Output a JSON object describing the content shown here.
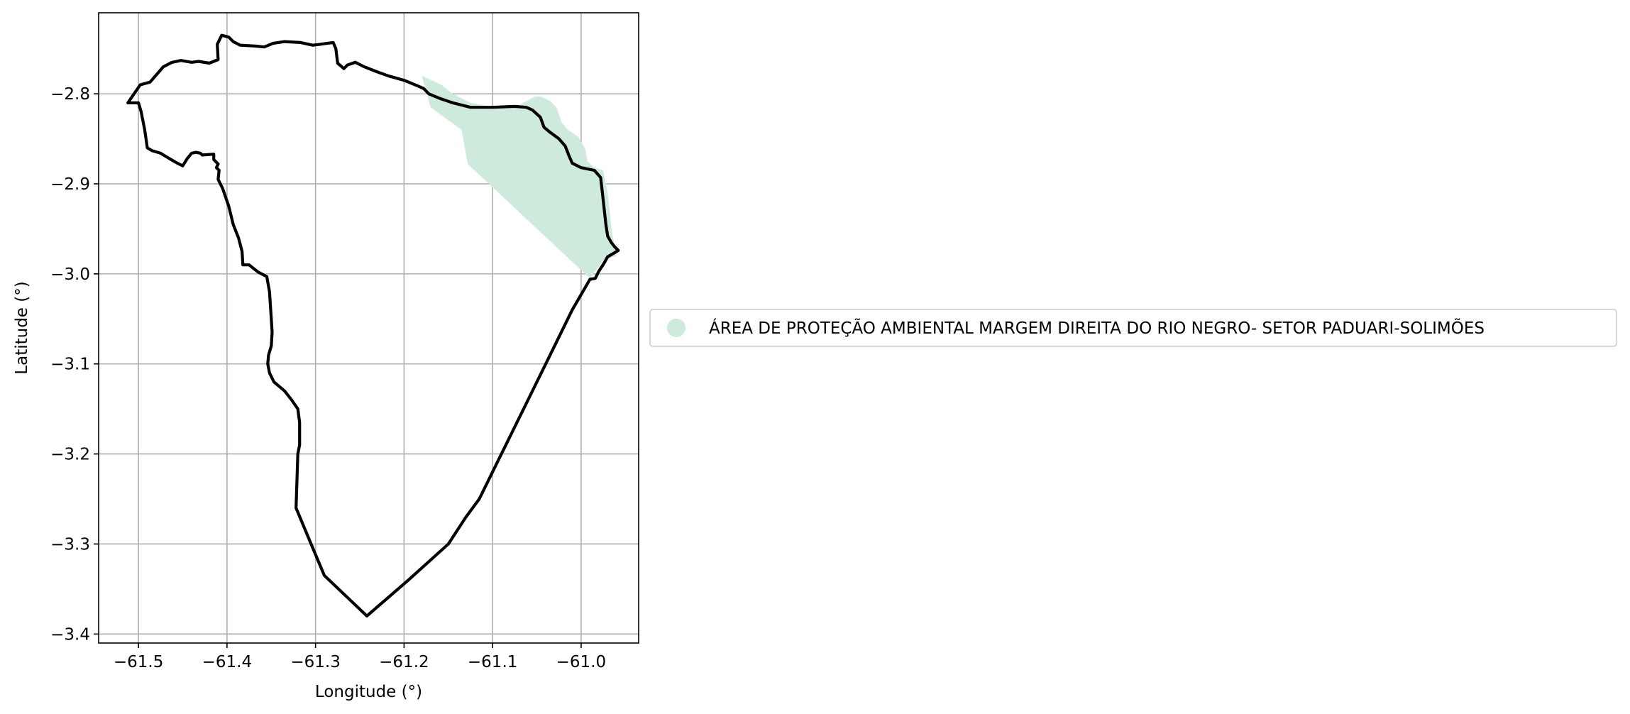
{
  "chart_data": {
    "type": "map",
    "xlabel": "Longitude (°)",
    "ylabel": "Latitude (°)",
    "xlim": [
      -61.545,
      -60.935
    ],
    "ylim": [
      -3.41,
      -2.71
    ],
    "x_ticks": [
      -61.5,
      -61.4,
      -61.3,
      -61.2,
      -61.1,
      -61.0
    ],
    "y_ticks": [
      -2.8,
      -2.9,
      -3.0,
      -3.1,
      -3.2,
      -3.3,
      -3.4
    ],
    "x_tick_labels": [
      "−61.5",
      "−61.4",
      "−61.3",
      "−61.2",
      "−61.1",
      "−61.0"
    ],
    "y_tick_labels": [
      "−2.8",
      "−2.9",
      "−3.0",
      "−3.1",
      "−3.2",
      "−3.3",
      "−3.4"
    ],
    "grid": true,
    "legend": {
      "placement": "right",
      "entries": [
        {
          "label": "ÁREA DE PROTEÇÃO AMBIENTAL MARGEM DIREITA DO RIO NEGRO- SETOR PADUARI-SOLIMÕES",
          "color": "#cdeadc",
          "marker": "circle"
        }
      ]
    },
    "protected_area": {
      "fill_color": "#cdeadc",
      "polygon": [
        [
          -61.18,
          -2.78
        ],
        [
          -61.17,
          -2.815
        ],
        [
          -61.135,
          -2.84
        ],
        [
          -61.128,
          -2.878
        ],
        [
          -60.99,
          -3.005
        ],
        [
          -60.975,
          -2.985
        ],
        [
          -60.96,
          -2.98
        ],
        [
          -60.965,
          -2.955
        ],
        [
          -60.97,
          -2.91
        ],
        [
          -60.975,
          -2.885
        ],
        [
          -60.985,
          -2.882
        ],
        [
          -60.993,
          -2.875
        ],
        [
          -60.995,
          -2.862
        ],
        [
          -61.003,
          -2.848
        ],
        [
          -61.015,
          -2.84
        ],
        [
          -61.022,
          -2.832
        ],
        [
          -61.028,
          -2.815
        ],
        [
          -61.035,
          -2.808
        ],
        [
          -61.045,
          -2.803
        ],
        [
          -61.052,
          -2.803
        ],
        [
          -61.075,
          -2.815
        ],
        [
          -61.1,
          -2.815
        ],
        [
          -61.125,
          -2.81
        ],
        [
          -61.145,
          -2.8
        ],
        [
          -61.158,
          -2.79
        ],
        [
          -61.18,
          -2.78
        ]
      ]
    },
    "boundary": {
      "stroke_color": "#000000",
      "polygon": [
        [
          -61.512,
          -2.81
        ],
        [
          -61.505,
          -2.8
        ],
        [
          -61.498,
          -2.79
        ],
        [
          -61.487,
          -2.787
        ],
        [
          -61.472,
          -2.77
        ],
        [
          -61.462,
          -2.765
        ],
        [
          -61.452,
          -2.763
        ],
        [
          -61.44,
          -2.765
        ],
        [
          -61.432,
          -2.764
        ],
        [
          -61.42,
          -2.766
        ],
        [
          -61.41,
          -2.762
        ],
        [
          -61.411,
          -2.745
        ],
        [
          -61.406,
          -2.735
        ],
        [
          -61.398,
          -2.737
        ],
        [
          -61.393,
          -2.742
        ],
        [
          -61.385,
          -2.746
        ],
        [
          -61.368,
          -2.747
        ],
        [
          -61.358,
          -2.748
        ],
        [
          -61.348,
          -2.744
        ],
        [
          -61.335,
          -2.742
        ],
        [
          -61.317,
          -2.743
        ],
        [
          -61.303,
          -2.746
        ],
        [
          -61.295,
          -2.745
        ],
        [
          -61.287,
          -2.744
        ],
        [
          -61.28,
          -2.743
        ],
        [
          -61.277,
          -2.75
        ],
        [
          -61.275,
          -2.766
        ],
        [
          -61.268,
          -2.772
        ],
        [
          -61.264,
          -2.768
        ],
        [
          -61.255,
          -2.765
        ],
        [
          -61.245,
          -2.77
        ],
        [
          -61.232,
          -2.775
        ],
        [
          -61.218,
          -2.78
        ],
        [
          -61.2,
          -2.785
        ],
        [
          -61.185,
          -2.791
        ],
        [
          -61.178,
          -2.794
        ],
        [
          -61.172,
          -2.8
        ],
        [
          -61.16,
          -2.805
        ],
        [
          -61.145,
          -2.81
        ],
        [
          -61.125,
          -2.815
        ],
        [
          -61.1,
          -2.815
        ],
        [
          -61.075,
          -2.814
        ],
        [
          -61.062,
          -2.815
        ],
        [
          -61.055,
          -2.818
        ],
        [
          -61.046,
          -2.826
        ],
        [
          -61.042,
          -2.837
        ],
        [
          -61.036,
          -2.842
        ],
        [
          -61.025,
          -2.85
        ],
        [
          -61.018,
          -2.858
        ],
        [
          -61.014,
          -2.868
        ],
        [
          -61.01,
          -2.877
        ],
        [
          -61.0,
          -2.882
        ],
        [
          -60.985,
          -2.885
        ],
        [
          -60.978,
          -2.893
        ],
        [
          -60.976,
          -2.91
        ],
        [
          -60.974,
          -2.927
        ],
        [
          -60.972,
          -2.945
        ],
        [
          -60.97,
          -2.958
        ],
        [
          -60.966,
          -2.965
        ],
        [
          -60.962,
          -2.97
        ],
        [
          -60.958,
          -2.974
        ],
        [
          -60.97,
          -2.981
        ],
        [
          -60.974,
          -2.988
        ],
        [
          -60.98,
          -2.997
        ],
        [
          -60.984,
          -3.005
        ],
        [
          -60.99,
          -3.006
        ],
        [
          -61.01,
          -3.04
        ],
        [
          -61.03,
          -3.08
        ],
        [
          -61.06,
          -3.14
        ],
        [
          -61.09,
          -3.2
        ],
        [
          -61.115,
          -3.25
        ],
        [
          -61.13,
          -3.27
        ],
        [
          -61.15,
          -3.3
        ],
        [
          -61.195,
          -3.34
        ],
        [
          -61.242,
          -3.38
        ],
        [
          -61.29,
          -3.335
        ],
        [
          -61.305,
          -3.3
        ],
        [
          -61.322,
          -3.26
        ],
        [
          -61.32,
          -3.2
        ],
        [
          -61.318,
          -3.19
        ],
        [
          -61.318,
          -3.165
        ],
        [
          -61.32,
          -3.15
        ],
        [
          -61.327,
          -3.14
        ],
        [
          -61.335,
          -3.13
        ],
        [
          -61.347,
          -3.12
        ],
        [
          -61.352,
          -3.11
        ],
        [
          -61.354,
          -3.1
        ],
        [
          -61.353,
          -3.09
        ],
        [
          -61.35,
          -3.08
        ],
        [
          -61.349,
          -3.065
        ],
        [
          -61.35,
          -3.05
        ],
        [
          -61.352,
          -3.02
        ],
        [
          -61.355,
          -3.003
        ],
        [
          -61.365,
          -2.998
        ],
        [
          -61.375,
          -2.99
        ],
        [
          -61.382,
          -2.99
        ],
        [
          -61.383,
          -2.975
        ],
        [
          -61.387,
          -2.96
        ],
        [
          -61.393,
          -2.945
        ],
        [
          -61.398,
          -2.925
        ],
        [
          -61.405,
          -2.905
        ],
        [
          -61.41,
          -2.895
        ],
        [
          -61.409,
          -2.885
        ],
        [
          -61.412,
          -2.882
        ],
        [
          -61.41,
          -2.878
        ],
        [
          -61.415,
          -2.873
        ],
        [
          -61.415,
          -2.867
        ],
        [
          -61.428,
          -2.868
        ],
        [
          -61.43,
          -2.866
        ],
        [
          -61.435,
          -2.865
        ],
        [
          -61.44,
          -2.866
        ],
        [
          -61.445,
          -2.872
        ],
        [
          -61.45,
          -2.88
        ],
        [
          -61.456,
          -2.877
        ],
        [
          -61.465,
          -2.872
        ],
        [
          -61.475,
          -2.866
        ],
        [
          -61.485,
          -2.863
        ],
        [
          -61.49,
          -2.86
        ],
        [
          -61.493,
          -2.84
        ],
        [
          -61.497,
          -2.82
        ],
        [
          -61.5,
          -2.81
        ],
        [
          -61.512,
          -2.81
        ]
      ]
    }
  }
}
